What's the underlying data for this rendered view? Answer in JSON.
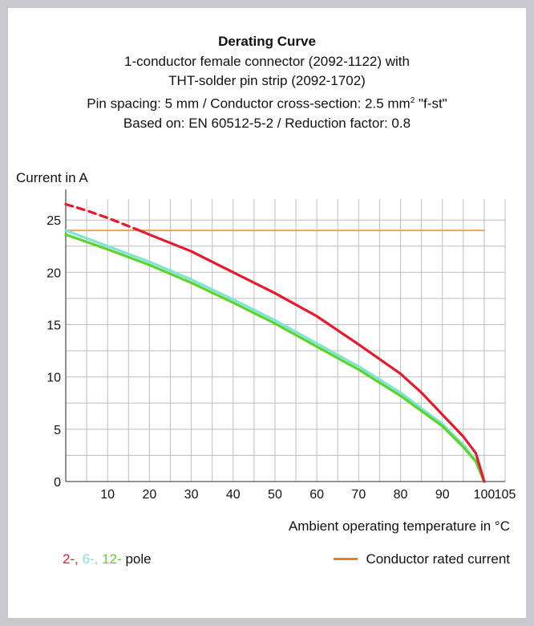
{
  "titles": {
    "main": "Derating Curve",
    "line1": "1-conductor female connector (2092-1122) with",
    "line2": "THT-solder pin strip (2092-1702)",
    "line3_prefix": "Pin spacing: 5 mm / Conductor cross-section: 2.5 mm",
    "line3_sup": "2",
    "line3_suffix": " \"f-st\"",
    "line4": "Based on: EN 60512-5-2 / Reduction factor: 0.8"
  },
  "colors": {
    "red": "#e8192c",
    "cyan": "#7fe3d6",
    "green": "#5ad42a",
    "orange": "#f7a14a",
    "legend_orange": "#f07d1a",
    "grid": "#bdbdbd",
    "axis": "#555555"
  },
  "legend": {
    "pole_2": "2-",
    "sep_1": ", ",
    "pole_6": "6-",
    "sep_2": ", ",
    "pole_12": "12-",
    "suffix": " pole",
    "rated": "Conductor rated current"
  },
  "chart_data": {
    "type": "line",
    "title": "Derating Curve",
    "xlabel": "Ambient operating temperature in °C",
    "ylabel": "Current in A",
    "xlim": [
      0,
      105
    ],
    "ylim": [
      0,
      27
    ],
    "grid": true,
    "xticks": [
      10,
      20,
      30,
      40,
      50,
      60,
      70,
      80,
      90,
      100,
      105
    ],
    "yticks": [
      0,
      5,
      10,
      15,
      20,
      25
    ],
    "series": [
      {
        "name": "2-",
        "color": "#e8192c",
        "dashed_x": [
          0,
          5,
          10,
          17.6
        ],
        "dashed_y": [
          26.5,
          25.9,
          25.2,
          24
        ],
        "x": [
          17.6,
          20,
          30,
          40,
          50,
          60,
          70,
          80,
          85,
          90,
          95,
          98,
          100
        ],
        "y": [
          24,
          23.6,
          22,
          20,
          18,
          15.8,
          13.1,
          10.3,
          8.5,
          6.4,
          4.3,
          2.7,
          0
        ]
      },
      {
        "name": "6-",
        "color": "#7fe3d6",
        "x": [
          0,
          10,
          20,
          30,
          40,
          50,
          60,
          70,
          80,
          90,
          95,
          98,
          100
        ],
        "y": [
          24.0,
          22.5,
          21.0,
          19.3,
          17.4,
          15.4,
          13.2,
          11.0,
          8.5,
          5.5,
          3.5,
          2.0,
          0
        ]
      },
      {
        "name": "12-",
        "color": "#5ad42a",
        "x": [
          0,
          10,
          20,
          30,
          40,
          50,
          60,
          70,
          80,
          90,
          95,
          98,
          100
        ],
        "y": [
          23.6,
          22.2,
          20.7,
          19.0,
          17.1,
          15.1,
          12.9,
          10.7,
          8.2,
          5.3,
          3.3,
          1.9,
          0
        ]
      },
      {
        "name": "Conductor rated current",
        "color": "#f7a14a",
        "x": [
          0,
          100
        ],
        "y": [
          24,
          24
        ]
      }
    ]
  }
}
